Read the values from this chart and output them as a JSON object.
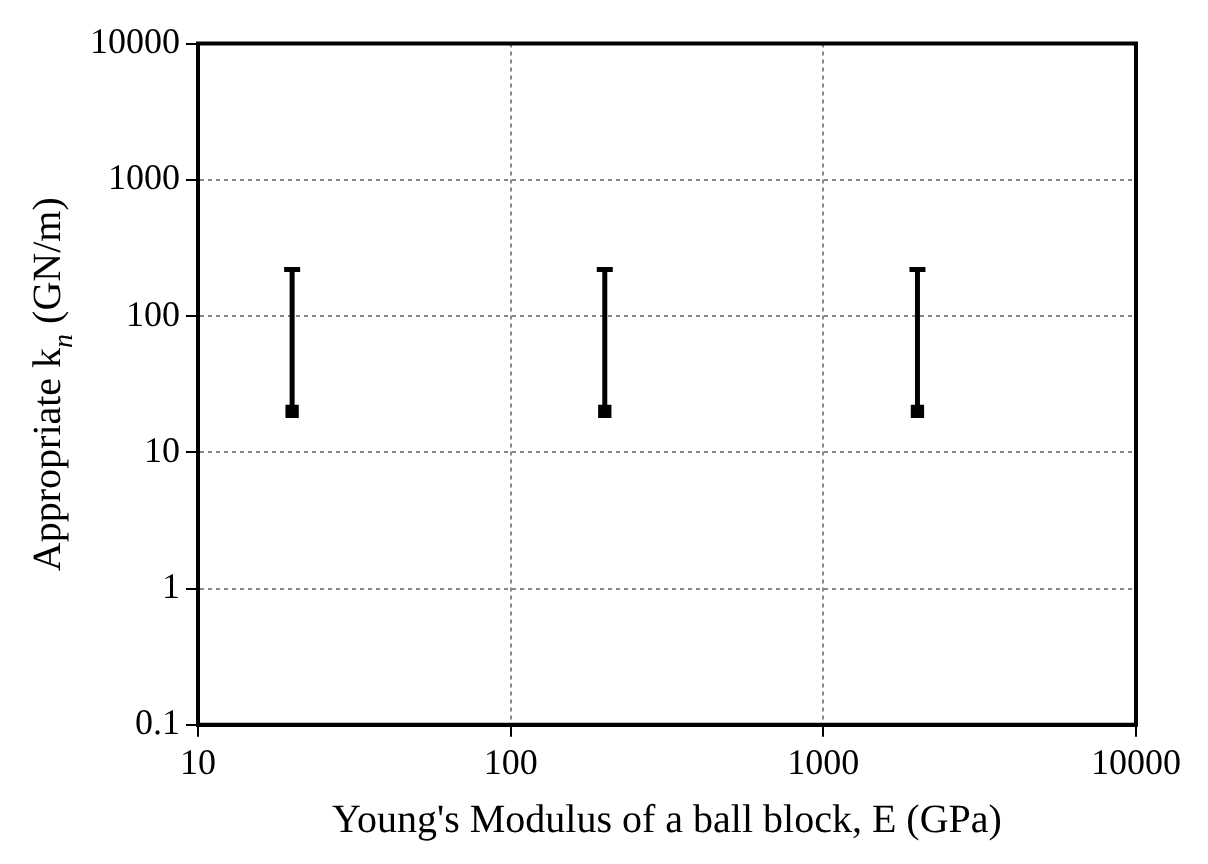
{
  "chart_data": {
    "type": "scatter",
    "xlabel": "Young's Modulus of a ball block, E (GPa)",
    "ylabel": "Appropriate k$_{n}$ (GN/m)",
    "x": [
      20,
      200,
      2000
    ],
    "series": [
      {
        "color": "#000000",
        "values": [
          20,
          20,
          20
        ],
        "errors": [
          [
            20,
            220
          ],
          [
            20,
            220
          ],
          [
            20,
            220
          ]
        ]
      }
    ],
    "log": "xy",
    "xlim": [
      10,
      10000
    ],
    "ylim": [
      0.1,
      10000
    ],
    "xticks": [
      10,
      100,
      1000,
      10000
    ],
    "yticks": [
      0.1,
      1,
      10,
      100,
      1000,
      10000
    ],
    "grid": true,
    "marker": "square",
    "legend": false
  }
}
